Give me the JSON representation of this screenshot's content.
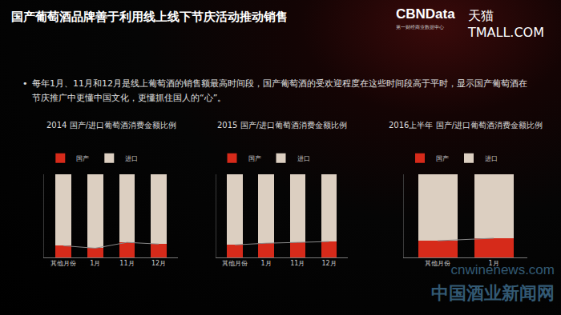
{
  "page": {
    "title": "国产葡萄酒品牌善于利用线上线下节庆活动推动销售",
    "logo": "CBNData",
    "logo_subtitle": "第一财经商业数据中心",
    "logo2": "天猫 TMALL.COM",
    "bullet": "每年1月、11月和12月是线上葡萄酒的销售额最高时间段，国产葡萄酒的受欢迎程度在这些时间段高于平时，显示国产葡萄酒在节庆推广中更懂中国文化，更懂抓住国人的“心”。",
    "watermark": [
      "cnwinenews.com",
      "中国酒业新闻网"
    ]
  },
  "chart_data": [
    {
      "type": "bar",
      "title": "2014 国产/进口葡萄酒消费金额比例",
      "stacked": true,
      "legend": "top-left",
      "tick_labels": "x",
      "grid": false,
      "categories": [
        "其他月份",
        "1月",
        "11月",
        "12月"
      ],
      "series": [
        {
          "name": "国产",
          "color": "#d62a1a",
          "values": [
            14,
            11,
            18,
            16
          ]
        },
        {
          "name": "进口",
          "color": "#dccfc1",
          "values": [
            86,
            89,
            82,
            84
          ]
        }
      ],
      "ylim": [
        0,
        100
      ],
      "yticks": []
    },
    {
      "type": "bar",
      "title": "2015 国产/进口葡萄酒消费金额比例",
      "stacked": true,
      "legend": "top-left",
      "tick_labels": "x",
      "grid": false,
      "categories": [
        "其他月份",
        "1月",
        "11月",
        "12月"
      ],
      "series": [
        {
          "name": "国产",
          "color": "#d62a1a",
          "values": [
            15,
            17,
            18,
            19
          ]
        },
        {
          "name": "进口",
          "color": "#dccfc1",
          "values": [
            85,
            83,
            82,
            81
          ]
        }
      ],
      "ylim": [
        0,
        100
      ],
      "yticks": []
    },
    {
      "type": "bar",
      "title": "2016上半年 国产/进口葡萄酒消费金额比例",
      "stacked": true,
      "legend": "top-left",
      "tick_labels": "x",
      "grid": false,
      "categories": [
        "其他月份",
        "1月"
      ],
      "series": [
        {
          "name": "国产",
          "color": "#d62a1a",
          "values": [
            20,
            23
          ]
        },
        {
          "name": "进口",
          "color": "#dccfc1",
          "values": [
            80,
            77
          ]
        }
      ],
      "ylim": [
        0,
        100
      ],
      "yticks": []
    }
  ]
}
